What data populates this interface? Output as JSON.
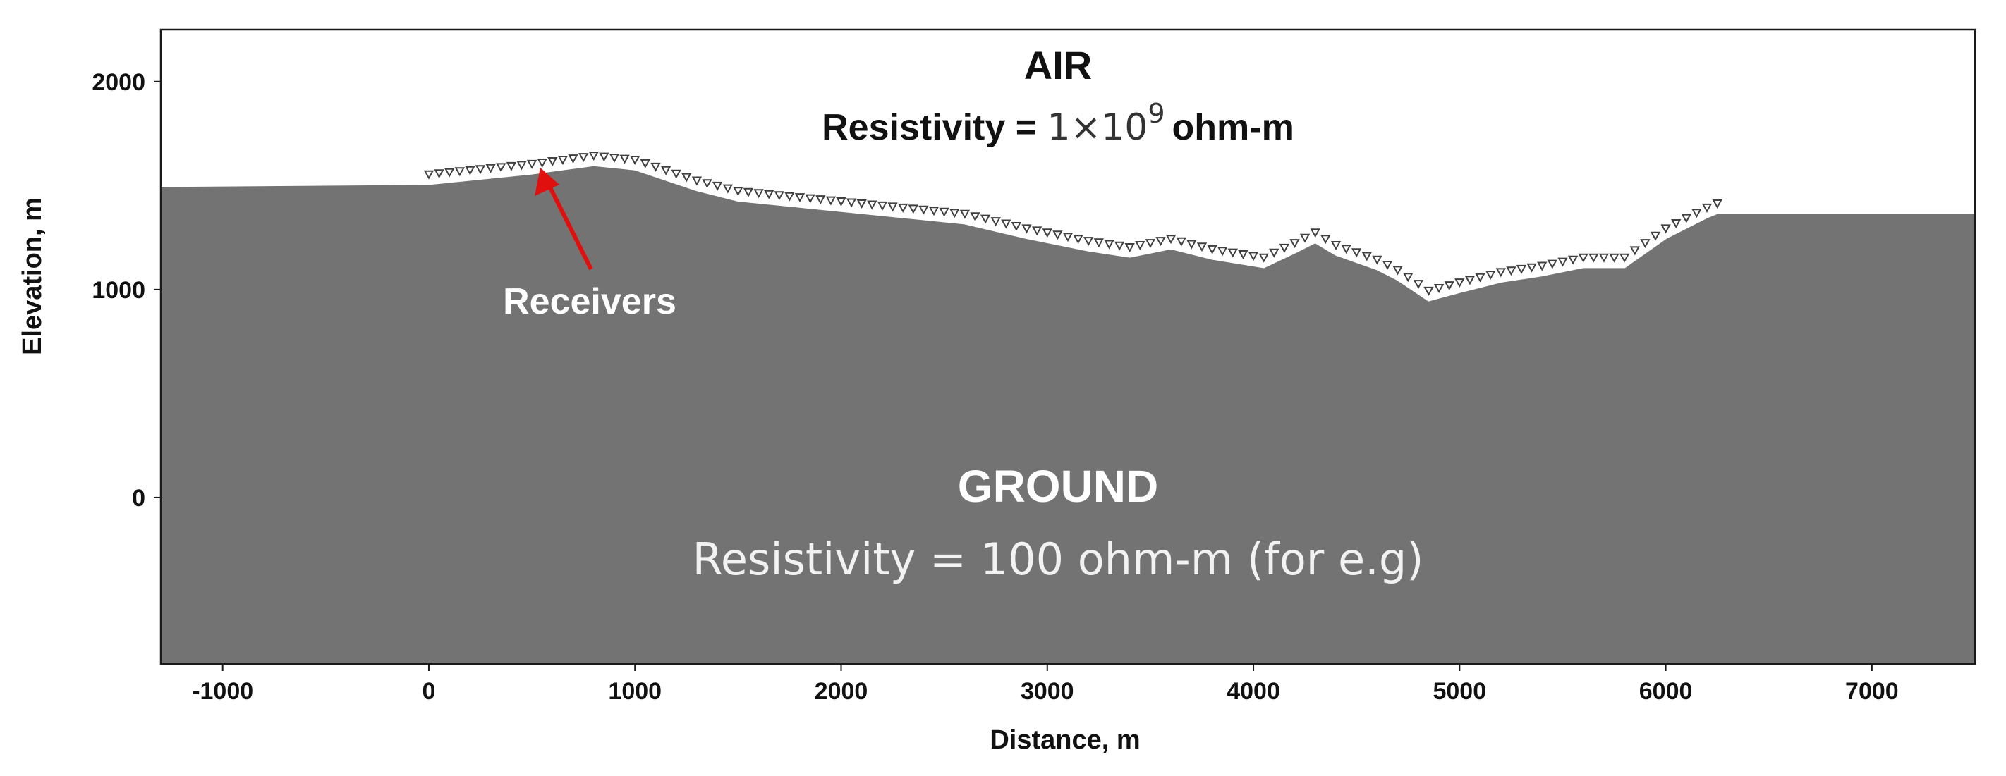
{
  "colors": {
    "ground": "#737373",
    "air": "#ffffff",
    "receiver": "#404040",
    "arrow": "#e0100f",
    "axis": "#1a1a1a"
  },
  "chart_data": {
    "type": "area",
    "xlabel": "Distance, m",
    "ylabel": "Elevation, m",
    "xlim": [
      -1300,
      7500
    ],
    "ylim": [
      -800,
      2250
    ],
    "xticks": [
      -1000,
      0,
      1000,
      2000,
      3000,
      4000,
      5000,
      6000,
      7000
    ],
    "yticks": [
      0,
      1000,
      2000
    ],
    "xtick_labels": [
      "-1000",
      "0",
      "1000",
      "2000",
      "3000",
      "4000",
      "5000",
      "6000",
      "7000"
    ],
    "ytick_labels": [
      "0",
      "1000",
      "2000"
    ],
    "grid": false,
    "series": [
      {
        "kind": "ground-surface",
        "x": [
          -1300,
          0,
          200,
          500,
          800,
          1000,
          1300,
          1500,
          1800,
          2200,
          2600,
          2900,
          3200,
          3400,
          3600,
          3800,
          4050,
          4200,
          4300,
          4400,
          4600,
          4700,
          4850,
          5000,
          5200,
          5400,
          5600,
          5800,
          6000,
          6200,
          6250,
          7500
        ],
        "y": [
          1500,
          1510,
          1530,
          1560,
          1600,
          1580,
          1480,
          1430,
          1400,
          1360,
          1320,
          1250,
          1190,
          1160,
          1200,
          1150,
          1110,
          1180,
          1230,
          1170,
          1100,
          1050,
          950,
          990,
          1040,
          1070,
          1110,
          1110,
          1250,
          1350,
          1370,
          1370
        ]
      },
      {
        "kind": "receivers",
        "x_start": 0,
        "x_end": 6250,
        "spacing": 50,
        "offset_above_ground": 45
      }
    ],
    "annotations": {
      "air_title": "AIR",
      "air_sub_prefix": "Resistivity = ",
      "air_sub_mantissa": "1×10",
      "air_sub_exponent": "9",
      "air_sub_unit": "ohm-m",
      "ground_title": "GROUND",
      "ground_sub": "Resistivity = 100 ohm-m (for e.g)",
      "receivers_label": "Receivers"
    }
  }
}
